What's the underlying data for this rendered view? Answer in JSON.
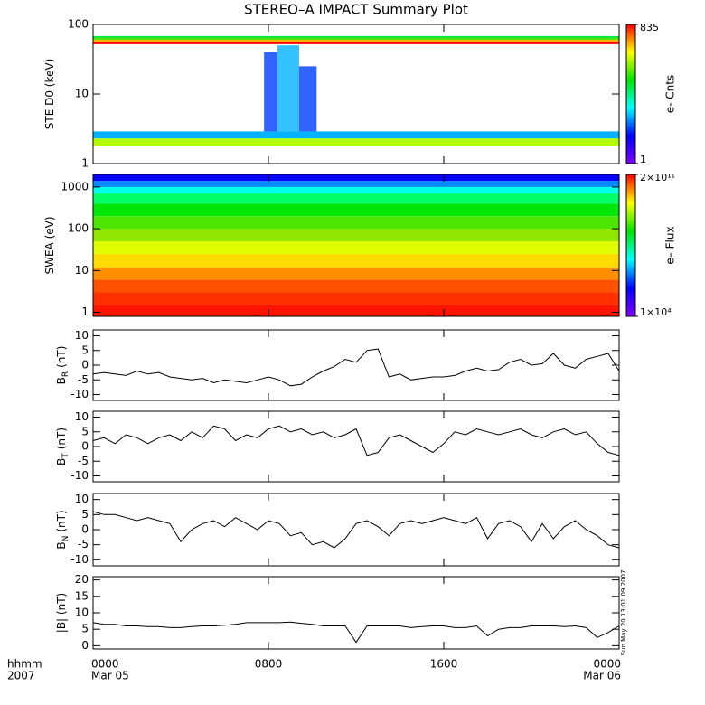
{
  "title": "STEREO–A IMPACT Summary Plot",
  "time": {
    "xlim": [
      0,
      24
    ],
    "xticks": [
      {
        "value": 0,
        "label": "0000"
      },
      {
        "value": 8,
        "label": "0800"
      },
      {
        "value": 16,
        "label": "1600"
      },
      {
        "value": 24,
        "label": "0000"
      }
    ],
    "date_labels": [
      "Mar 05",
      "Mar 06"
    ],
    "unit_label": "hhmm",
    "year": "2007"
  },
  "footnote": "Sun May 20 13:01:09 2007",
  "chart_data": [
    {
      "type": "heatmap",
      "ylabel": "STE D0 (keV)",
      "log": true,
      "ylim": [
        1,
        100
      ],
      "yticks": [
        1,
        10,
        100
      ],
      "energy_edges": [
        1.8,
        2.3,
        2.9,
        52,
        56,
        60,
        64,
        68
      ],
      "values": [
        120,
        6,
        null,
        800,
        300,
        70,
        30
      ],
      "events": [
        {
          "x": [
            7.8,
            8.4
          ],
          "energy": [
            2.9,
            40
          ],
          "value": 3
        },
        {
          "x": [
            8.4,
            9.4
          ],
          "energy": [
            2.9,
            50
          ],
          "value": 6
        },
        {
          "x": [
            9.4,
            10.2
          ],
          "energy": [
            2.9,
            25
          ],
          "value": 3
        }
      ],
      "clim": [
        1,
        835
      ],
      "cticks": [
        1,
        835
      ],
      "clabel": "e- Cnts"
    },
    {
      "type": "heatmap",
      "ylabel": "SWEA (eV)",
      "log": true,
      "ylim": [
        0.8,
        2000
      ],
      "yticks": [
        1,
        10,
        100,
        1000
      ],
      "energy_edges": [
        0.8,
        1.5,
        3,
        6,
        12,
        25,
        50,
        100,
        200,
        400,
        700,
        1000,
        1400,
        2000
      ],
      "values": [
        150000000000,
        100000000000,
        60000000000,
        25000000000,
        8000000000,
        3000000000,
        1200000000,
        400000000,
        100000000,
        25000000,
        4000000,
        500000,
        60000
      ],
      "events": [],
      "clim": [
        10000,
        200000000000
      ],
      "cticks": [
        {
          "value": 10000,
          "label": "1×10⁴"
        },
        {
          "value": 200000000000,
          "label": "2×10¹¹"
        }
      ],
      "clabel": "e– Flux"
    },
    {
      "type": "line",
      "ylabel": "B",
      "ylabel_sub": "R",
      "ylabel_unit": "(nT)",
      "ylim": [
        -12,
        12
      ],
      "yticks": [
        -10,
        -5,
        0,
        5,
        10
      ],
      "x": [
        0,
        0.5,
        1,
        1.5,
        2,
        2.5,
        3,
        3.5,
        4,
        4.5,
        5,
        5.5,
        6,
        6.5,
        7,
        7.5,
        8,
        8.5,
        9,
        9.5,
        10,
        10.5,
        11,
        11.5,
        12,
        12.5,
        13,
        13.5,
        14,
        14.5,
        15,
        15.5,
        16,
        16.5,
        17,
        17.5,
        18,
        18.5,
        19,
        19.5,
        20,
        20.5,
        21,
        21.5,
        22,
        22.5,
        23,
        23.5,
        24
      ],
      "values": [
        -3,
        -2.5,
        -3,
        -3.5,
        -2,
        -3,
        -2.5,
        -4,
        -4.5,
        -5,
        -4.5,
        -6,
        -5,
        -5.5,
        -6,
        -5,
        -4,
        -5,
        -7,
        -6.5,
        -4,
        -2,
        -0.5,
        2,
        1,
        5,
        5.5,
        -4,
        -3,
        -5,
        -4.5,
        -4,
        -4,
        -3.5,
        -2,
        -1,
        -2,
        -1.5,
        1,
        2,
        0,
        0.5,
        4,
        0,
        -1,
        2,
        3,
        4,
        -2
      ],
      "color": "#000000"
    },
    {
      "type": "line",
      "ylabel": "B",
      "ylabel_sub": "T",
      "ylabel_unit": "(nT)",
      "ylim": [
        -12,
        12
      ],
      "yticks": [
        -10,
        -5,
        0,
        5,
        10
      ],
      "x": [
        0,
        0.5,
        1,
        1.5,
        2,
        2.5,
        3,
        3.5,
        4,
        4.5,
        5,
        5.5,
        6,
        6.5,
        7,
        7.5,
        8,
        8.5,
        9,
        9.5,
        10,
        10.5,
        11,
        11.5,
        12,
        12.5,
        13,
        13.5,
        14,
        14.5,
        15,
        15.5,
        16,
        16.5,
        17,
        17.5,
        18,
        18.5,
        19,
        19.5,
        20,
        20.5,
        21,
        21.5,
        22,
        22.5,
        23,
        23.5,
        24
      ],
      "values": [
        2,
        3,
        1,
        4,
        3,
        1,
        3,
        4,
        2,
        5,
        3,
        7,
        6,
        2,
        4,
        3,
        6,
        7,
        5,
        6,
        4,
        5,
        3,
        4,
        6,
        -3,
        -2,
        3,
        4,
        2,
        0,
        -2,
        1,
        5,
        4,
        6,
        5,
        4,
        5,
        6,
        4,
        3,
        5,
        6,
        4,
        5,
        1,
        -2,
        -3
      ],
      "color": "#000000"
    },
    {
      "type": "line",
      "ylabel": "B",
      "ylabel_sub": "N",
      "ylabel_unit": "(nT)",
      "ylim": [
        -12,
        12
      ],
      "yticks": [
        -10,
        -5,
        0,
        5,
        10
      ],
      "x": [
        0,
        0.5,
        1,
        1.5,
        2,
        2.5,
        3,
        3.5,
        4,
        4.5,
        5,
        5.5,
        6,
        6.5,
        7,
        7.5,
        8,
        8.5,
        9,
        9.5,
        10,
        10.5,
        11,
        11.5,
        12,
        12.5,
        13,
        13.5,
        14,
        14.5,
        15,
        15.5,
        16,
        16.5,
        17,
        17.5,
        18,
        18.5,
        19,
        19.5,
        20,
        20.5,
        21,
        21.5,
        22,
        22.5,
        23,
        23.5,
        24
      ],
      "values": [
        6,
        5,
        5,
        4,
        3,
        4,
        3,
        2,
        -4,
        0,
        2,
        3,
        1,
        4,
        2,
        0,
        3,
        2,
        -2,
        -1,
        -5,
        -4,
        -6,
        -3,
        2,
        3,
        1,
        -2,
        2,
        3,
        2,
        3,
        4,
        3,
        2,
        4,
        -3,
        2,
        3,
        1,
        -4,
        2,
        -3,
        1,
        3,
        0,
        -2,
        -5,
        -6
      ],
      "color": "#000000"
    },
    {
      "type": "line",
      "ylabel": "|B| (nT)",
      "ylim": [
        -1,
        21
      ],
      "yticks": [
        0,
        5,
        10,
        15,
        20
      ],
      "x": [
        0,
        0.5,
        1,
        1.5,
        2,
        2.5,
        3,
        3.5,
        4,
        4.5,
        5,
        5.5,
        6,
        6.5,
        7,
        7.5,
        8,
        8.5,
        9,
        9.5,
        10,
        10.5,
        11,
        11.5,
        12,
        12.5,
        13,
        13.5,
        14,
        14.5,
        15,
        15.5,
        16,
        16.5,
        17,
        17.5,
        18,
        18.5,
        19,
        19.5,
        20,
        20.5,
        21,
        21.5,
        22,
        22.5,
        23,
        23.5,
        24
      ],
      "values": [
        7,
        6.5,
        6.5,
        6,
        6,
        5.8,
        5.8,
        5.5,
        5.5,
        5.8,
        6,
        6,
        6.2,
        6.5,
        7,
        7,
        7,
        7,
        7.2,
        6.8,
        6.5,
        6,
        6,
        6,
        1,
        6,
        6,
        6,
        6,
        5.5,
        5.8,
        6,
        6,
        5.5,
        5.5,
        6,
        3,
        5,
        5.5,
        5.5,
        6,
        6,
        6,
        5.8,
        6,
        5.5,
        2.5,
        4,
        6
      ],
      "color": "#000000"
    }
  ]
}
